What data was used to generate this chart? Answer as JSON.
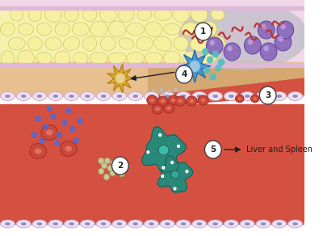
{
  "tissue_pink": "#f0d8e8",
  "fat_fill": "#f5f0a0",
  "fat_outline": "#d0c860",
  "fat_bg_fill": "#f5f2b0",
  "subendo_tan": "#e8c090",
  "subendo_slope": "#d4a870",
  "blood_red": "#d45040",
  "blood_dark": "#c04030",
  "endo_cell_fill": "#f0e0ee",
  "endo_cell_edge": "#c8a0c0",
  "endo_nucleus": "#9090c8",
  "gray_cloud": "#c0bcc8",
  "rbc_fill": "#cc4838",
  "rbc_dark": "#a83028",
  "rbc_inner": "#e07060",
  "blue_dot": "#5568cc",
  "nano_fill": "#c8c898",
  "nano_edge": "#a0a060",
  "teal_outer": "#2a8878",
  "teal_edge": "#1a5858",
  "teal_nucleus": "#38bba8",
  "teal_nucleus2": "#30a898",
  "gold_cell": "#d8a830",
  "gold_edge": "#a87818",
  "blue_dend": "#4898d0",
  "blue_dend_edge": "#2060a8",
  "cyan_dot": "#50c0c0",
  "purple_fill": "#9070bc",
  "purple_edge": "#6040a0",
  "bacteria_col": "#c03030",
  "label_fill": "#ffffff",
  "label_edge": "#404040",
  "arrow_col": "#202020",
  "text_col": "#202020",
  "figsize": [
    4.0,
    2.92
  ],
  "dpi": 100
}
